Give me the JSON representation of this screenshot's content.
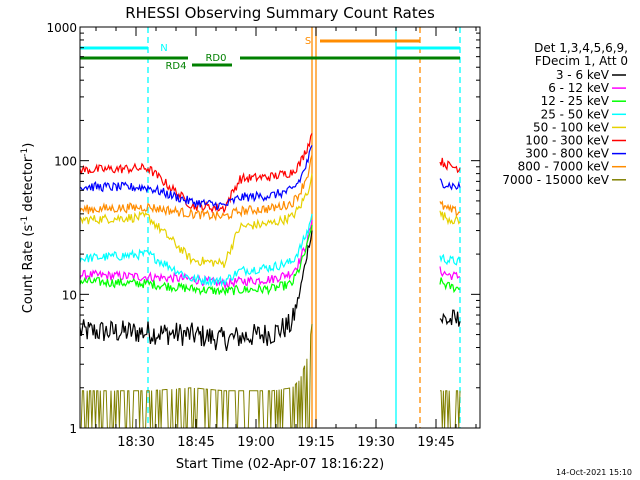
{
  "chart_data": {
    "type": "line",
    "title": "RHESSI Observing Summary Count Rates",
    "xlabel": "Start Time (02-Apr-07 18:16:22)",
    "ylabel": "Count Rate (s⁻¹ detector⁻¹)",
    "ylabel_parts": [
      "Count Rate (s",
      "-1",
      " detector",
      "-1",
      ")"
    ],
    "yscale": "log",
    "ylim": [
      1,
      1000
    ],
    "xlim": [
      "18:16",
      "19:56"
    ],
    "x_ticks": [
      "18:30",
      "18:45",
      "19:00",
      "19:15",
      "19:30",
      "19:45"
    ],
    "y_ticks": [
      "1",
      "10",
      "100",
      "1000"
    ],
    "legend_header": [
      "Det 1,3,4,5,6,9,",
      "FDecim 1, Att 0"
    ],
    "legend_position": "right",
    "annotations": {
      "N": "N",
      "S": "S",
      "RD0": "RD0",
      "RD4": "RD4"
    },
    "flag_bars": {
      "night": [
        [
          "18:16",
          "18:33"
        ],
        [
          "19:35",
          "19:51"
        ]
      ],
      "saa": [
        [
          "19:16",
          "19:41"
        ]
      ],
      "rd0": [
        [
          "18:16",
          "18:43"
        ],
        [
          "18:56",
          "19:51"
        ]
      ],
      "rd4": [
        [
          "18:44",
          "18:54"
        ]
      ]
    },
    "vertical_markers": [
      {
        "time": "18:33",
        "color": "#00ffff",
        "style": "dashed"
      },
      {
        "time": "19:14",
        "color": "#ff8c00",
        "style": "solid"
      },
      {
        "time": "19:15",
        "color": "#ff8c00",
        "style": "solid"
      },
      {
        "time": "19:35",
        "color": "#00ffff",
        "style": "solid"
      },
      {
        "time": "19:41",
        "color": "#ff8c00",
        "style": "dashed"
      },
      {
        "time": "19:51",
        "color": "#00ffff",
        "style": "dashed"
      }
    ],
    "series": [
      {
        "name": "3 - 6 keV",
        "color": "#000000",
        "values": [
          [
            "18:16",
            5.3
          ],
          [
            "18:33",
            5.2
          ],
          [
            "18:44",
            5.0
          ],
          [
            "18:52",
            4.6
          ],
          [
            "18:56",
            4.8
          ],
          [
            "19:04",
            5.1
          ],
          [
            "19:09",
            6.0
          ],
          [
            "19:11",
            10.5
          ],
          [
            "19:13",
            22.0
          ],
          [
            "19:14",
            30.0
          ],
          [
            "19:46",
            6.6
          ],
          [
            "19:48",
            6.4
          ],
          [
            "19:51",
            6.3
          ]
        ]
      },
      {
        "name": "6 - 12 keV",
        "color": "#ff00ff",
        "values": [
          [
            "18:16",
            14.0
          ],
          [
            "18:33",
            13.5
          ],
          [
            "18:44",
            13.0
          ],
          [
            "18:52",
            12.0
          ],
          [
            "18:56",
            12.5
          ],
          [
            "19:04",
            13.0
          ],
          [
            "19:09",
            14.5
          ],
          [
            "19:11",
            18.0
          ],
          [
            "19:13",
            26.0
          ],
          [
            "19:14",
            36.0
          ],
          [
            "19:46",
            15.0
          ],
          [
            "19:48",
            14.0
          ],
          [
            "19:51",
            13.5
          ]
        ]
      },
      {
        "name": "12 - 25 keV",
        "color": "#00ff00",
        "values": [
          [
            "18:16",
            12.5
          ],
          [
            "18:33",
            12.0
          ],
          [
            "18:44",
            11.0
          ],
          [
            "18:52",
            10.5
          ],
          [
            "18:56",
            10.8
          ],
          [
            "19:04",
            11.0
          ],
          [
            "19:09",
            12.0
          ],
          [
            "19:11",
            16.0
          ],
          [
            "19:13",
            24.0
          ],
          [
            "19:14",
            33.0
          ],
          [
            "19:46",
            12.5
          ],
          [
            "19:48",
            11.5
          ],
          [
            "19:51",
            11.0
          ]
        ]
      },
      {
        "name": "25 - 50 keV",
        "color": "#00ffff",
        "values": [
          [
            "18:16",
            18.5
          ],
          [
            "18:33",
            20.0
          ],
          [
            "18:44",
            13.0
          ],
          [
            "18:52",
            12.5
          ],
          [
            "18:56",
            15.0
          ],
          [
            "19:04",
            16.0
          ],
          [
            "19:09",
            17.5
          ],
          [
            "19:11",
            22.0
          ],
          [
            "19:13",
            30.0
          ],
          [
            "19:14",
            40.0
          ],
          [
            "19:46",
            19.0
          ],
          [
            "19:48",
            18.0
          ],
          [
            "19:51",
            17.5
          ]
        ]
      },
      {
        "name": "50 - 100 keV",
        "color": "#e6d200",
        "values": [
          [
            "18:16",
            36.0
          ],
          [
            "18:33",
            38.0
          ],
          [
            "18:44",
            18.0
          ],
          [
            "18:52",
            17.0
          ],
          [
            "18:56",
            32.0
          ],
          [
            "19:04",
            34.0
          ],
          [
            "19:09",
            38.0
          ],
          [
            "19:11",
            45.0
          ],
          [
            "19:13",
            60.0
          ],
          [
            "19:14",
            80.0
          ],
          [
            "19:46",
            40.0
          ],
          [
            "19:48",
            37.0
          ],
          [
            "19:51",
            35.0
          ]
        ]
      },
      {
        "name": "100 - 300 keV",
        "color": "#ff0000",
        "values": [
          [
            "18:16",
            85.0
          ],
          [
            "18:33",
            88.0
          ],
          [
            "18:44",
            46.0
          ],
          [
            "18:52",
            44.0
          ],
          [
            "18:56",
            73.0
          ],
          [
            "19:04",
            76.0
          ],
          [
            "19:09",
            82.0
          ],
          [
            "19:11",
            95.0
          ],
          [
            "19:13",
            130.0
          ],
          [
            "19:14",
            160.0
          ],
          [
            "19:46",
            100.0
          ],
          [
            "19:48",
            92.0
          ],
          [
            "19:51",
            88.0
          ]
        ]
      },
      {
        "name": "300 - 800 keV",
        "color": "#0000ff",
        "values": [
          [
            "18:16",
            64.0
          ],
          [
            "18:33",
            63.0
          ],
          [
            "18:44",
            49.0
          ],
          [
            "18:52",
            46.0
          ],
          [
            "18:56",
            53.0
          ],
          [
            "19:04",
            55.0
          ],
          [
            "19:09",
            60.0
          ],
          [
            "19:11",
            72.0
          ],
          [
            "19:13",
            100.0
          ],
          [
            "19:14",
            130.0
          ],
          [
            "19:46",
            70.0
          ],
          [
            "19:48",
            66.0
          ],
          [
            "19:51",
            63.0
          ]
        ]
      },
      {
        "name": "800 - 7000 keV",
        "color": "#ff8c00",
        "values": [
          [
            "18:16",
            43.0
          ],
          [
            "18:33",
            45.0
          ],
          [
            "18:44",
            40.0
          ],
          [
            "18:52",
            38.0
          ],
          [
            "18:56",
            42.0
          ],
          [
            "19:04",
            44.0
          ],
          [
            "19:09",
            48.0
          ],
          [
            "19:11",
            58.0
          ],
          [
            "19:13",
            80.0
          ],
          [
            "19:14",
            110.0
          ],
          [
            "19:46",
            47.0
          ],
          [
            "19:48",
            43.0
          ],
          [
            "19:51",
            41.0
          ]
        ]
      },
      {
        "name": "7000 - 15000 keV",
        "color": "#808000",
        "values": [
          [
            "18:16",
            1.9
          ],
          [
            "18:33",
            1.9
          ],
          [
            "18:44",
            2.0
          ],
          [
            "18:52",
            1.9
          ],
          [
            "18:56",
            1.9
          ],
          [
            "19:04",
            1.9
          ],
          [
            "19:09",
            2.0
          ],
          [
            "19:11",
            2.3
          ],
          [
            "19:13",
            3.5
          ],
          [
            "19:14",
            6.0
          ],
          [
            "19:46",
            1.9
          ],
          [
            "19:48",
            1.9
          ],
          [
            "19:51",
            1.9
          ]
        ]
      }
    ]
  },
  "footer": {
    "datestamp": "14-Oct-2021 15:10"
  }
}
